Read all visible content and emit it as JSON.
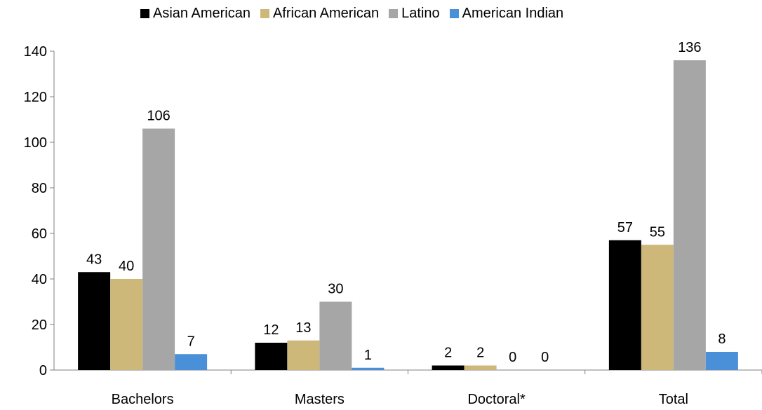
{
  "chart_data": {
    "type": "bar",
    "title": "",
    "xlabel": "",
    "ylabel": "",
    "categories": [
      "Bachelors",
      "Masters",
      "Doctoral*",
      "Total"
    ],
    "series": [
      {
        "name": "Asian American",
        "color": "#000000",
        "values": [
          43,
          12,
          2,
          57
        ]
      },
      {
        "name": "African American",
        "color": "#cdb87a",
        "values": [
          40,
          13,
          2,
          55
        ]
      },
      {
        "name": "Latino",
        "color": "#a6a6a6",
        "values": [
          106,
          30,
          0,
          136
        ]
      },
      {
        "name": "American Indian",
        "color": "#4a90d9",
        "values": [
          7,
          1,
          0,
          8
        ]
      }
    ],
    "ylim": [
      0,
      140
    ],
    "yticks": [
      0,
      20,
      40,
      60,
      80,
      100,
      120,
      140
    ],
    "grid": false,
    "legend_position": "top"
  }
}
